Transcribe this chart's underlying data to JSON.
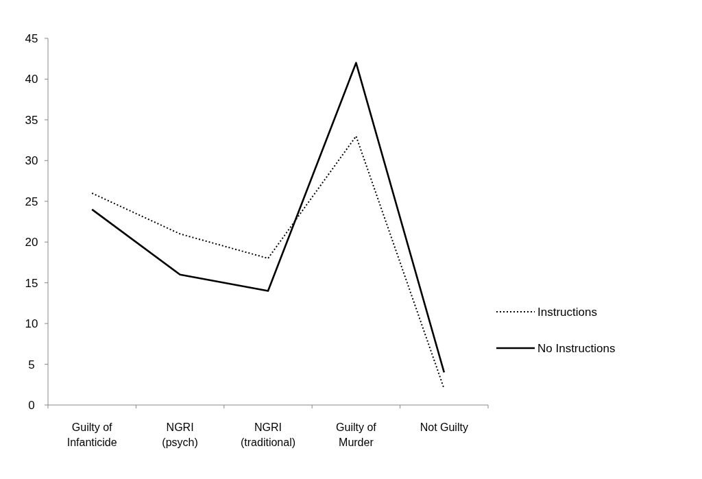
{
  "chart_data": {
    "type": "line",
    "categories": [
      "Guilty of Infanticide",
      "NGRI (psych)",
      "NGRI (traditional)",
      "Guilty of Murder",
      "Not Guilty"
    ],
    "series": [
      {
        "name": "Instructions",
        "color": "#000000",
        "values": [
          26,
          21,
          18,
          33,
          2
        ],
        "line_style": "dotted"
      },
      {
        "name": "No Instructions",
        "color": "#000000",
        "values": [
          24,
          16,
          14,
          42,
          4
        ],
        "line_style": "solid"
      }
    ],
    "ylim": [
      0,
      45
    ],
    "yticks": [
      0,
      5,
      10,
      15,
      20,
      25,
      30,
      35,
      40,
      45
    ],
    "grid": false,
    "legend": "right",
    "marker": "none"
  }
}
